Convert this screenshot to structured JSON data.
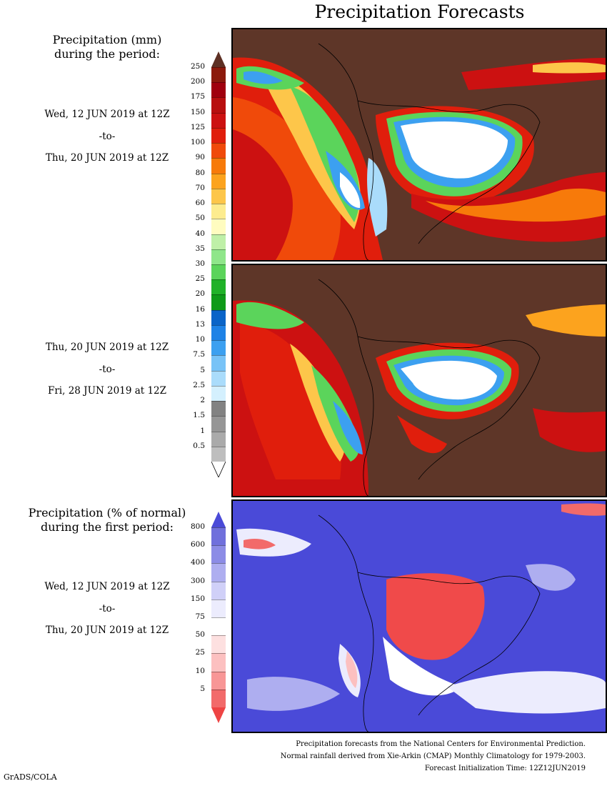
{
  "title": "Precipitation Forecasts",
  "legend_mm": {
    "caption_line1": "Precipitation (mm)",
    "caption_line2": "during the period:",
    "labels": [
      "250",
      "200",
      "175",
      "150",
      "125",
      "100",
      "90",
      "80",
      "70",
      "60",
      "50",
      "40",
      "35",
      "30",
      "25",
      "20",
      "16",
      "13",
      "10",
      "7.5",
      "5",
      "2.5",
      "2",
      "1.5",
      "1",
      "0.5"
    ],
    "colors": [
      "#8c1a0c",
      "#a0000e",
      "#b80f0f",
      "#cc1111",
      "#e01e0c",
      "#f04a0a",
      "#f77a0a",
      "#fca31e",
      "#fdc64a",
      "#fdec8f",
      "#fffcc0",
      "#bff0a8",
      "#8fe68a",
      "#5bd45b",
      "#20b228",
      "#0e9a18",
      "#0a64c8",
      "#1e82e6",
      "#3ca0f0",
      "#78c3f7",
      "#aadcfb",
      "#d4f0fe",
      "#828282",
      "#969696",
      "#aaaaaa",
      "#bebebe"
    ],
    "top_arrow_color": "#5e3024",
    "bottom_arrow_color": "#ffffff"
  },
  "period1": {
    "start": "Wed, 12 JUN 2019 at 12Z",
    "sep": "-to-",
    "end": "Thu, 20 JUN 2019 at 12Z"
  },
  "period2": {
    "start": "Thu, 20 JUN 2019 at 12Z",
    "sep": "-to-",
    "end": "Fri, 28 JUN 2019 at 12Z"
  },
  "legend_pct": {
    "caption_line1": "Precipitation (% of normal)",
    "caption_line2": "during the first period:",
    "labels": [
      "800",
      "600",
      "400",
      "300",
      "150",
      "75",
      "50",
      "25",
      "10",
      "5"
    ],
    "colors": [
      "#7070dc",
      "#8c8ce6",
      "#aeaef0",
      "#d0d0f8",
      "#ececfd",
      "#ffffff",
      "#fde0e0",
      "#fcc0c0",
      "#f89696",
      "#f26a6a"
    ],
    "top_arrow_color": "#4a4ad8",
    "bottom_arrow_color": "#ee4444"
  },
  "period3": {
    "start": "Wed, 12 JUN 2019 at 12Z",
    "sep": "-to-",
    "end": "Thu, 20 JUN 2019 at 12Z"
  },
  "map_colors": {
    "dry": "#5e3628",
    "wet_white": "#ffffff",
    "normal_blue": "#4a4ad8",
    "below_red": "#f04a4a"
  },
  "footer": {
    "line1": "Precipitation forecasts from the National Centers for Environmental Prediction.",
    "line2": "Normal rainfall derived from Xie-Arkin (CMAP) Monthly Climatology for 1979-2003.",
    "line3": "Forecast Initialization Time: 12Z12JUN2019"
  },
  "credit": "GrADS/COLA"
}
